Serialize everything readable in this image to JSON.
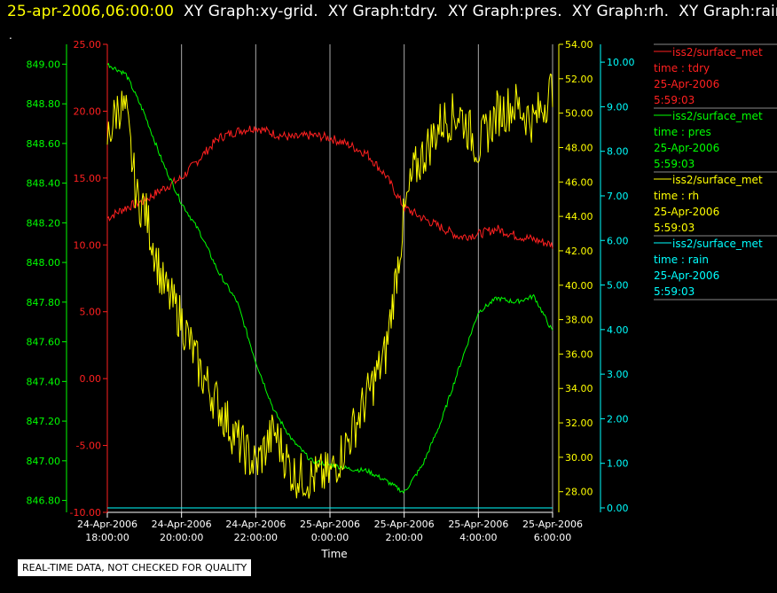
{
  "header": {
    "timestamp": "25-apr-2006,06:00:00",
    "graphs": [
      "XY Graph:xy-grid.",
      "XY Graph:tdry.",
      "XY Graph:pres.",
      "XY Graph:rh.",
      "XY Graph:rain"
    ]
  },
  "marker": ".",
  "footer": {
    "notice": "REAL-TIME DATA, NOT CHECKED FOR QUALITY"
  },
  "colors": {
    "tdry": "#ff2020",
    "pres": "#00ff00",
    "rh": "#ffff00",
    "rain": "#00ffff",
    "grid": "#aaaaaa",
    "text": "#ffffff"
  },
  "chart_data": {
    "type": "line",
    "xlabel": "Time",
    "x_ticks": [
      [
        "24-Apr-2006",
        "18:00:00"
      ],
      [
        "24-Apr-2006",
        "20:00:00"
      ],
      [
        "24-Apr-2006",
        "22:00:00"
      ],
      [
        "25-Apr-2006",
        "0:00:00"
      ],
      [
        "25-Apr-2006",
        "2:00:00"
      ],
      [
        "25-Apr-2006",
        "4:00:00"
      ],
      [
        "25-Apr-2006",
        "6:00:00"
      ]
    ],
    "x_range_hours": [
      0,
      12
    ],
    "axes": {
      "tdry": {
        "range": [
          -10,
          25
        ],
        "ticks": [
          "-10.00",
          "-5.00",
          "0.00",
          "5.00",
          "10.00",
          "15.00",
          "20.00",
          "25.00"
        ]
      },
      "pres": {
        "range": [
          846.74,
          849.1
        ],
        "ticks": [
          "846.80",
          "847.00",
          "847.20",
          "847.40",
          "847.60",
          "847.80",
          "848.00",
          "848.20",
          "848.40",
          "848.60",
          "848.80",
          "849.00"
        ]
      },
      "rh": {
        "range": [
          26.8,
          54
        ],
        "ticks": [
          "28.00",
          "30.00",
          "32.00",
          "34.00",
          "36.00",
          "38.00",
          "40.00",
          "42.00",
          "44.00",
          "46.00",
          "48.00",
          "50.00",
          "52.00",
          "54.00"
        ]
      },
      "rain": {
        "range": [
          -0.1,
          10.4
        ],
        "ticks": [
          "0.00",
          "1.00",
          "2.00",
          "3.00",
          "4.00",
          "5.00",
          "6.00",
          "7.00",
          "8.00",
          "9.00",
          "10.00"
        ]
      }
    },
    "series": [
      {
        "name": "tdry",
        "x": [
          0,
          0.5,
          1,
          1.5,
          2,
          2.5,
          3,
          3.5,
          4,
          4.5,
          5,
          5.5,
          6,
          6.5,
          7,
          7.5,
          8,
          8.5,
          9,
          9.5,
          10,
          10.5,
          11,
          11.5,
          12
        ],
        "y": [
          12.0,
          12.8,
          13.3,
          14.2,
          15.0,
          16.5,
          18.0,
          18.5,
          18.8,
          18.3,
          18.0,
          18.2,
          18.0,
          17.5,
          16.8,
          15.2,
          12.8,
          12.0,
          11.3,
          10.6,
          10.8,
          11.2,
          10.7,
          10.4,
          10.0
        ]
      },
      {
        "name": "pres",
        "x": [
          0,
          0.5,
          1,
          1.5,
          2,
          2.5,
          3,
          3.5,
          4,
          4.5,
          5,
          5.5,
          6,
          6.5,
          7,
          7.5,
          8,
          8.5,
          9,
          9.5,
          10,
          10.5,
          11,
          11.5,
          12
        ],
        "y": [
          849.0,
          848.95,
          848.75,
          848.5,
          848.3,
          848.15,
          847.95,
          847.8,
          847.5,
          847.25,
          847.1,
          847.0,
          846.98,
          846.96,
          846.95,
          846.9,
          846.84,
          846.98,
          847.2,
          847.48,
          847.75,
          847.82,
          847.8,
          847.83,
          847.65
        ]
      },
      {
        "name": "rh",
        "x": [
          0,
          0.3,
          0.5,
          0.8,
          1,
          1.5,
          2,
          2.5,
          3,
          3.5,
          4,
          4.5,
          5,
          5.5,
          6,
          6.5,
          7,
          7.5,
          8,
          8.25,
          8.5,
          9,
          9.5,
          10,
          10.5,
          11,
          11.5,
          12
        ],
        "y": [
          48.5,
          50.5,
          50.0,
          45.0,
          44.5,
          40.0,
          38.0,
          35.0,
          33.0,
          31.0,
          29.5,
          31.5,
          29.0,
          28.8,
          29.0,
          31.0,
          33.5,
          36.0,
          44.0,
          46.5,
          47.5,
          49.5,
          50.0,
          48.0,
          50.0,
          50.5,
          49.5,
          51.5
        ]
      },
      {
        "name": "rain",
        "x": [
          0,
          12
        ],
        "y": [
          0,
          0
        ]
      }
    ],
    "legend": [
      {
        "series": "iss2/surface_met",
        "var": "time : tdry",
        "date": "25-Apr-2006",
        "time": "5:59:03"
      },
      {
        "series": "iss2/surface_met",
        "var": "time : pres",
        "date": "25-Apr-2006",
        "time": "5:59:03"
      },
      {
        "series": "iss2/surface_met",
        "var": "time : rh",
        "date": "25-Apr-2006",
        "time": "5:59:03"
      },
      {
        "series": "iss2/surface_met",
        "var": "time : rain",
        "date": "25-Apr-2006",
        "time": "5:59:03"
      }
    ],
    "legend_position": "right",
    "grid": true
  }
}
